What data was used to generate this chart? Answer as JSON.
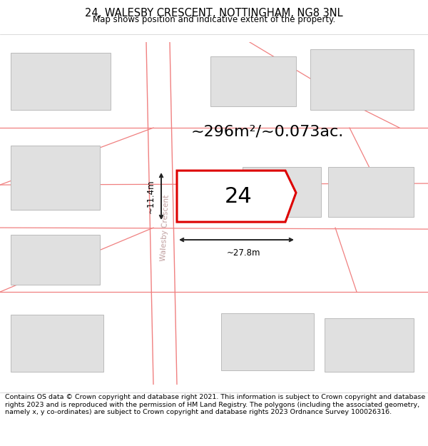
{
  "title": "24, WALESBY CRESCENT, NOTTINGHAM, NG8 3NL",
  "subtitle": "Map shows position and indicative extent of the property.",
  "footer": "Contains OS data © Crown copyright and database right 2021. This information is subject to Crown copyright and database rights 2023 and is reproduced with the permission of HM Land Registry. The polygons (including the associated geometry, namely x, y co-ordinates) are subject to Crown copyright and database rights 2023 Ordnance Survey 100026316.",
  "area_label": "~296m²/~0.073ac.",
  "width_label": "~27.8m",
  "height_label": "~11.4m",
  "house_number": "24",
  "street_name": "Walesby Crescent",
  "bg_color": "#ffffff",
  "map_bg": "#ffffff",
  "building_fill": "#e0e0e0",
  "building_edge": "#bbbbbb",
  "road_color": "#f08080",
  "highlight_fill": "#ffffff",
  "highlight_edge": "#dd0000",
  "dim_line_color": "#222222",
  "title_fontsize": 10.5,
  "subtitle_fontsize": 8.5,
  "footer_fontsize": 6.8,
  "area_fontsize": 16,
  "house_fontsize": 22,
  "dim_fontsize": 8.5,
  "street_fontsize": 7.5
}
